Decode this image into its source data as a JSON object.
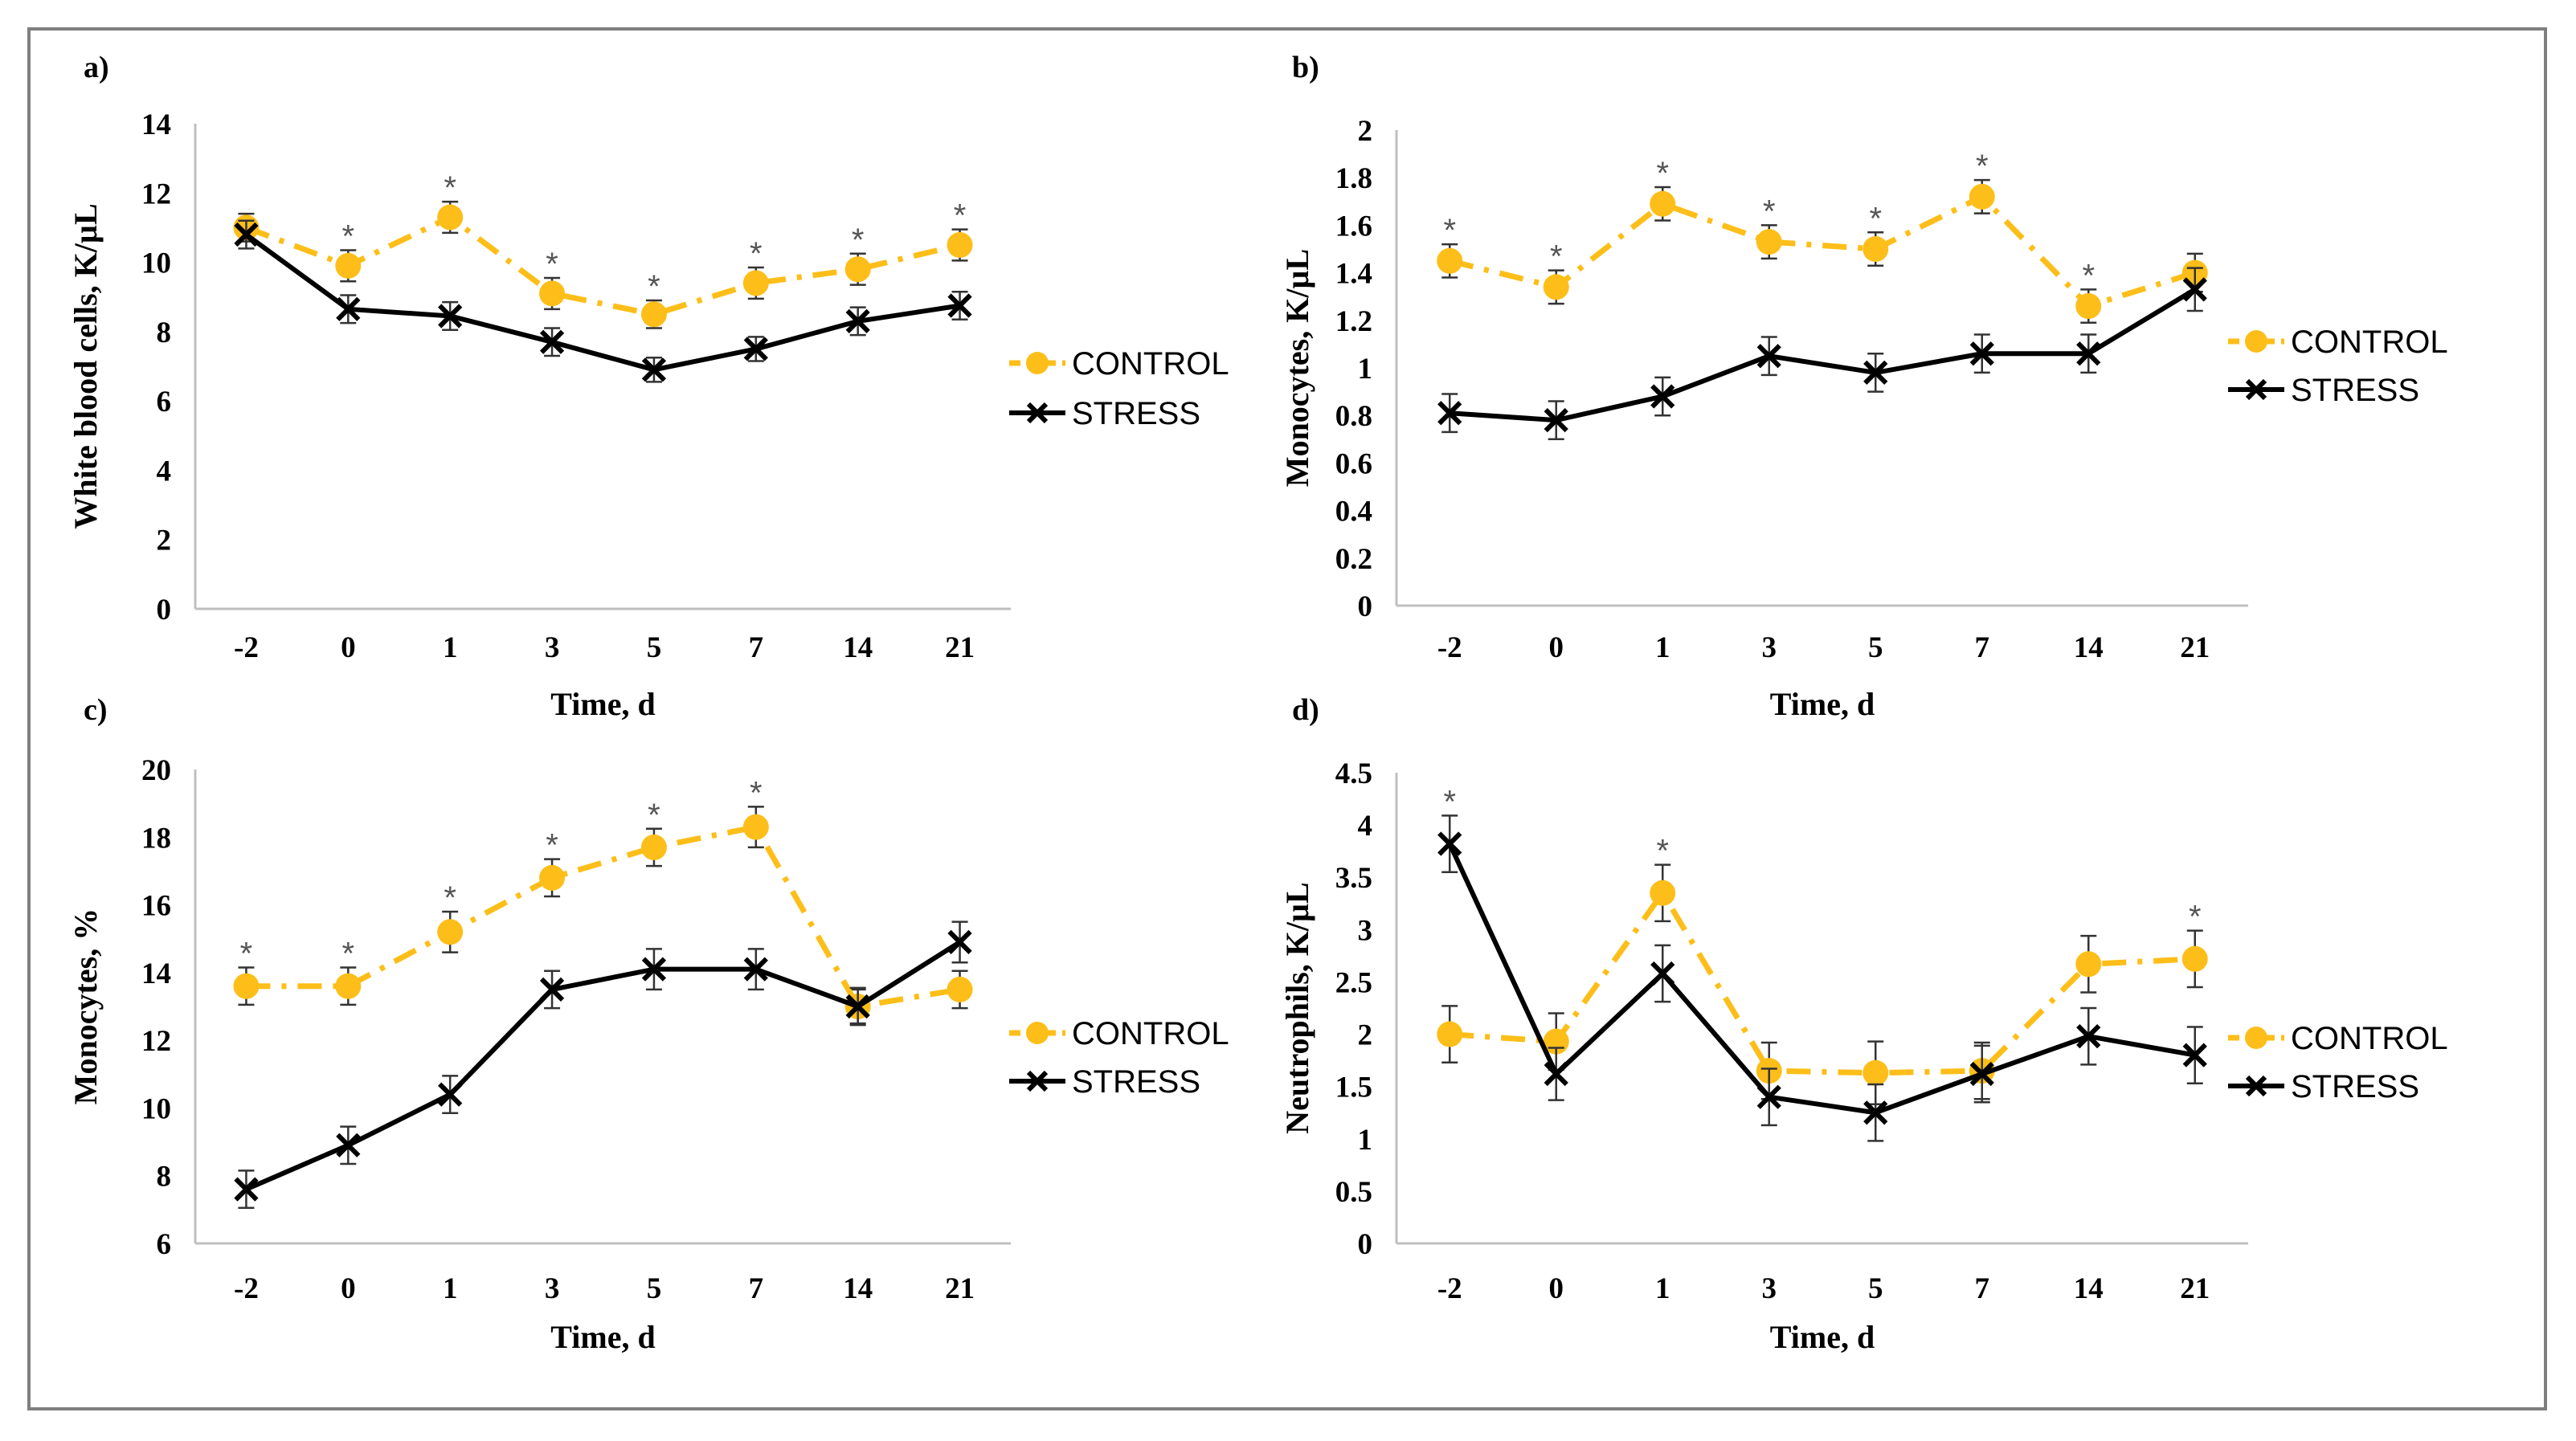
{
  "colors": {
    "control": "#FDBE19",
    "stress": "#000000",
    "axis": "#bfbfbf",
    "errorbar": "#333333",
    "star": "#555555"
  },
  "chart_data": [
    {
      "panel_label": "a)",
      "type": "line",
      "categories": [
        "-2",
        "0",
        "1",
        "3",
        "5",
        "7",
        "14",
        "21"
      ],
      "ylabel": "White blood cells, K/µL",
      "xlabel": "Time, d",
      "ylim": [
        0,
        14
      ],
      "yticks": [
        "0",
        "2",
        "4",
        "6",
        "8",
        "10",
        "12",
        "14"
      ],
      "series": [
        {
          "name": "CONTROL",
          "values": [
            11.0,
            9.9,
            11.3,
            9.1,
            8.5,
            9.4,
            9.8,
            10.5
          ],
          "errors": [
            0.4,
            0.45,
            0.45,
            0.45,
            0.4,
            0.45,
            0.45,
            0.45
          ]
        },
        {
          "name": "STRESS",
          "values": [
            10.8,
            8.65,
            8.45,
            7.7,
            6.9,
            7.5,
            8.3,
            8.75
          ],
          "errors": [
            0.4,
            0.4,
            0.4,
            0.4,
            0.35,
            0.35,
            0.4,
            0.4
          ]
        }
      ],
      "significant": [
        false,
        true,
        true,
        true,
        true,
        true,
        true,
        true
      ],
      "legend": [
        "CONTROL",
        "STRESS"
      ],
      "significance_mark": "*"
    },
    {
      "panel_label": "b)",
      "type": "line",
      "categories": [
        "-2",
        "0",
        "1",
        "3",
        "5",
        "7",
        "14",
        "21"
      ],
      "ylabel": "Monocytes, K/µL",
      "xlabel": "Time, d",
      "ylim": [
        0,
        2
      ],
      "yticks": [
        "0",
        "0.2",
        "0.4",
        "0.6",
        "0.8",
        "1",
        "1.2",
        "1.4",
        "1.6",
        "1.8",
        "2"
      ],
      "series": [
        {
          "name": "CONTROL",
          "values": [
            1.45,
            1.34,
            1.69,
            1.53,
            1.5,
            1.72,
            1.26,
            1.4
          ],
          "errors": [
            0.07,
            0.07,
            0.07,
            0.07,
            0.07,
            0.07,
            0.07,
            0.08
          ]
        },
        {
          "name": "STRESS",
          "values": [
            0.81,
            0.78,
            0.88,
            1.05,
            0.98,
            1.06,
            1.06,
            1.33
          ],
          "errors": [
            0.08,
            0.08,
            0.08,
            0.08,
            0.08,
            0.08,
            0.08,
            0.09
          ]
        }
      ],
      "significant": [
        true,
        true,
        true,
        true,
        true,
        true,
        true,
        false
      ],
      "legend": [
        "CONTROL",
        "STRESS"
      ],
      "significance_mark": "*"
    },
    {
      "panel_label": "c)",
      "type": "line",
      "categories": [
        "-2",
        "0",
        "1",
        "3",
        "5",
        "7",
        "14",
        "21"
      ],
      "ylabel": "Monocytes, %",
      "xlabel": "Time, d",
      "ylim": [
        6,
        20
      ],
      "yticks": [
        "6",
        "8",
        "10",
        "12",
        "14",
        "16",
        "18",
        "20"
      ],
      "series": [
        {
          "name": "CONTROL",
          "values": [
            13.6,
            13.6,
            15.2,
            16.8,
            17.7,
            18.3,
            13.0,
            13.5
          ],
          "errors": [
            0.55,
            0.55,
            0.6,
            0.55,
            0.55,
            0.6,
            0.5,
            0.55
          ]
        },
        {
          "name": "STRESS",
          "values": [
            7.6,
            8.9,
            10.4,
            13.5,
            14.1,
            14.1,
            13.0,
            14.9
          ],
          "errors": [
            0.55,
            0.55,
            0.55,
            0.55,
            0.6,
            0.6,
            0.55,
            0.6
          ]
        }
      ],
      "significant": [
        true,
        true,
        true,
        true,
        true,
        true,
        false,
        false
      ],
      "legend": [
        "CONTROL",
        "STRESS"
      ],
      "significance_mark": "*"
    },
    {
      "panel_label": "d)",
      "type": "line",
      "categories": [
        "-2",
        "0",
        "1",
        "3",
        "5",
        "7",
        "14",
        "21"
      ],
      "ylabel": "Neutrophils, K/µL",
      "xlabel": "Time, d",
      "ylim": [
        0,
        4.5
      ],
      "yticks": [
        "0",
        "0.5",
        "1",
        "1.5",
        "2",
        "2.5",
        "3",
        "3.5",
        "4",
        "4.5"
      ],
      "series": [
        {
          "name": "CONTROL",
          "values": [
            2.0,
            1.93,
            3.35,
            1.65,
            1.63,
            1.65,
            2.67,
            2.72
          ],
          "errors": [
            0.27,
            0.27,
            0.27,
            0.27,
            0.3,
            0.27,
            0.27,
            0.27
          ]
        },
        {
          "name": "STRESS",
          "values": [
            3.82,
            1.62,
            2.58,
            1.4,
            1.25,
            1.62,
            1.98,
            1.8
          ],
          "errors": [
            0.27,
            0.25,
            0.27,
            0.27,
            0.27,
            0.27,
            0.27,
            0.27
          ]
        }
      ],
      "significant": [
        true,
        false,
        true,
        false,
        false,
        false,
        false,
        true
      ],
      "legend": [
        "CONTROL",
        "STRESS"
      ],
      "significance_mark": "*"
    }
  ]
}
